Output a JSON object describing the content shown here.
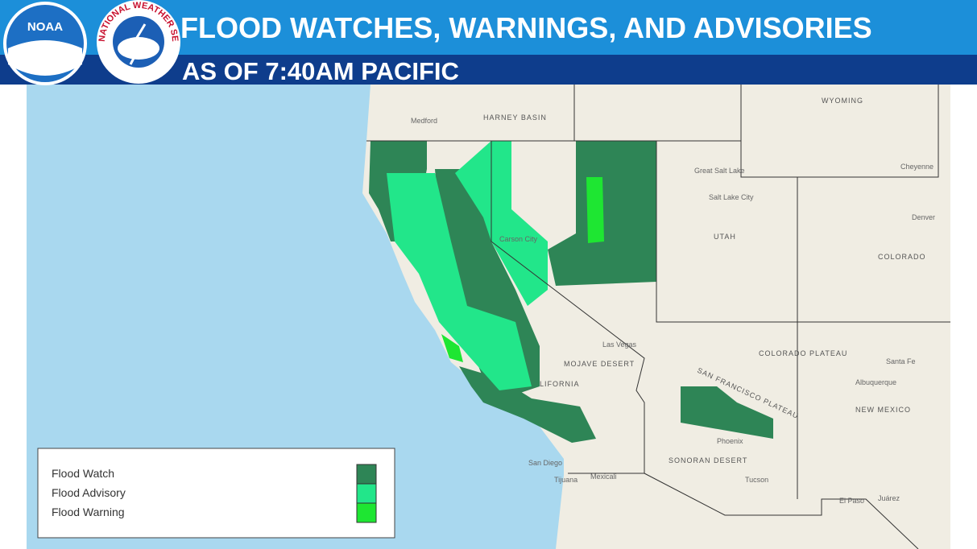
{
  "header": {
    "title": "FLOOD WATCHES, WARNINGS, AND ADVISORIES",
    "subtitle": "AS OF 7:40AM PACIFIC",
    "logos": {
      "noaa": "NOAA",
      "nws": "NATIONAL WEATHER SERVICE"
    }
  },
  "legend": [
    {
      "label": "Flood Watch",
      "color": "#2e8556"
    },
    {
      "label": "Flood Advisory",
      "color": "#22e68a"
    },
    {
      "label": "Flood Warning",
      "color": "#1ee632"
    }
  ],
  "map_labels": [
    "Medford",
    "HARNEY BASIN",
    "WYOMING",
    "Cheyenne",
    "Denver",
    "Great Salt Lake",
    "Salt Lake City",
    "UTAH",
    "COLORADO",
    "Carson City",
    "Las Vegas",
    "MOJAVE DESERT",
    "LIFORNIA",
    "COLORADO PLATEAU",
    "Santa Fe",
    "Albuquerque",
    "NEW MEXICO",
    "SAN FRANCISCO PLATEAU",
    "Phoenix",
    "SONORAN DESERT",
    "Tucson",
    "San Diego",
    "Tijuana",
    "Mexicali",
    "El Paso",
    "Juárez"
  ]
}
